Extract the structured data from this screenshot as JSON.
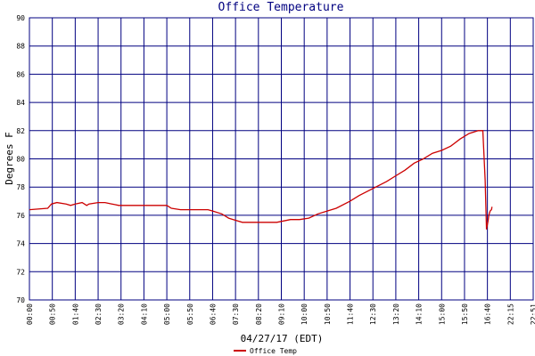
{
  "chart_data": {
    "type": "line",
    "title": "Office Temperature",
    "xlabel": "04/27/17 (EDT)",
    "ylabel": "Degrees F",
    "ylim": [
      70,
      90
    ],
    "yticks": [
      "70",
      "72",
      "74",
      "76",
      "78",
      "80",
      "82",
      "84",
      "86",
      "88",
      "90"
    ],
    "xlim": [
      "00:00",
      "22:51"
    ],
    "xticks": [
      "00:00",
      "00:50",
      "01:40",
      "02:30",
      "03:20",
      "04:10",
      "05:00",
      "05:50",
      "06:40",
      "07:30",
      "08:20",
      "09:10",
      "10:00",
      "10:50",
      "11:40",
      "12:30",
      "13:20",
      "14:10",
      "15:00",
      "15:50",
      "16:40",
      "22:15",
      "22:51"
    ],
    "grid": true,
    "legend_position": "bottom-left",
    "colors": {
      "grid": "#000080",
      "series": "#cc0000",
      "title": "#000080"
    },
    "series": [
      {
        "name": "Office Temp",
        "x": [
          "00:00",
          "00:40",
          "00:48",
          "01:00",
          "01:20",
          "01:30",
          "01:40",
          "01:55",
          "02:05",
          "02:10",
          "02:30",
          "02:45",
          "03:00",
          "03:15",
          "03:30",
          "04:00",
          "04:30",
          "05:00",
          "05:10",
          "05:30",
          "06:00",
          "06:30",
          "06:40",
          "07:00",
          "07:15",
          "07:25",
          "07:45",
          "08:00",
          "08:30",
          "09:00",
          "09:30",
          "09:50",
          "10:10",
          "10:30",
          "10:50",
          "11:10",
          "11:40",
          "12:00",
          "12:30",
          "13:00",
          "13:20",
          "13:40",
          "14:00",
          "14:20",
          "14:40",
          "15:00",
          "15:20",
          "15:40",
          "16:00",
          "16:20",
          "16:30",
          "16:35",
          "16:38",
          "16:50",
          "17:00",
          "17:20",
          "17:40",
          "17:48"
        ],
        "values": [
          76.4,
          76.5,
          76.8,
          76.9,
          76.8,
          76.7,
          76.8,
          76.9,
          76.7,
          76.8,
          76.9,
          76.9,
          76.8,
          76.7,
          76.7,
          76.7,
          76.7,
          76.7,
          76.5,
          76.4,
          76.4,
          76.4,
          76.3,
          76.1,
          75.8,
          75.7,
          75.5,
          75.5,
          75.5,
          75.5,
          75.7,
          75.7,
          75.8,
          76.1,
          76.3,
          76.5,
          77.0,
          77.4,
          77.9,
          78.4,
          78.8,
          79.2,
          79.7,
          80.0,
          80.4,
          80.6,
          80.9,
          81.4,
          81.8,
          82.0,
          82.0,
          78.5,
          75.0,
          75.6,
          76.0,
          76.3,
          76.4,
          76.6
        ]
      }
    ]
  }
}
